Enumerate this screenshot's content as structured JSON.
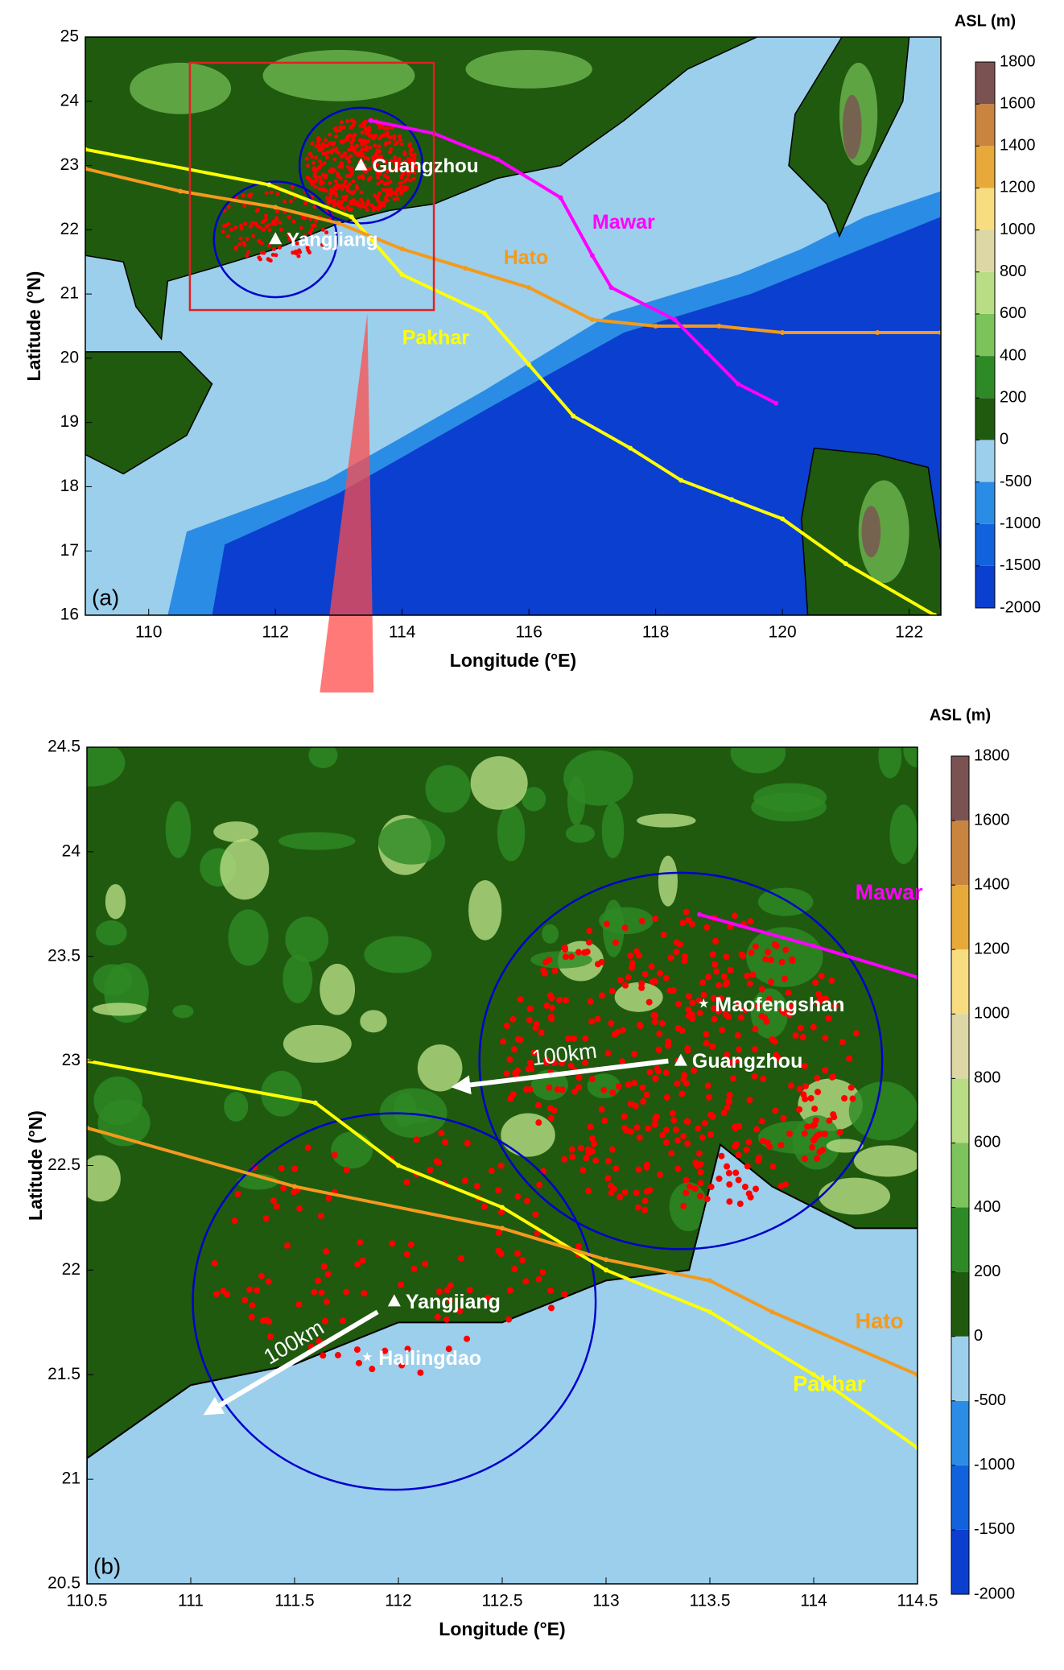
{
  "maps": [
    {
      "label": "(a)",
      "xlabel": "Longitude (°E)",
      "ylabel": "Latitude (°N)",
      "xlim": [
        109,
        122.5
      ],
      "ylim": [
        16,
        25
      ],
      "xticks": [
        110,
        112,
        114,
        116,
        118,
        120,
        122
      ],
      "yticks": [
        16,
        17,
        18,
        19,
        20,
        21,
        22,
        23,
        24,
        25
      ],
      "colorbar": {
        "title": "ASL (m)",
        "levels": [
          -2000,
          -1500,
          -1000,
          -500,
          0,
          200,
          400,
          600,
          800,
          1000,
          1200,
          1400,
          1600,
          1800
        ],
        "colors": [
          "#0a3fcf",
          "#1262dd",
          "#2a8ce5",
          "#9ccfec",
          "#1f5a0e",
          "#2e8a26",
          "#7bc35a",
          "#b8dd84",
          "#dcd7a4",
          "#f8dc80",
          "#e6a93a",
          "#c98440",
          "#7a5252"
        ]
      },
      "tracks": [
        {
          "name": "Pakhar",
          "color": "#ffff00",
          "label_at": [
            114,
            20.3
          ],
          "lon": [
            109,
            111.9,
            113.2,
            114,
            115.3,
            116,
            116.7,
            117.6,
            118.4,
            119.2,
            120,
            121,
            122.4
          ],
          "lat": [
            23.25,
            22.7,
            22.2,
            21.3,
            20.7,
            19.9,
            19.1,
            18.6,
            18.1,
            17.8,
            17.5,
            16.8,
            16
          ]
        },
        {
          "name": "Hato",
          "color": "#f39a1e",
          "label_at": [
            115.6,
            21.55
          ],
          "lon": [
            109,
            110.5,
            112,
            113,
            114,
            115,
            116,
            117,
            118,
            119,
            120,
            121.5,
            122.5
          ],
          "lat": [
            22.95,
            22.6,
            22.35,
            22.1,
            21.7,
            21.4,
            21.1,
            20.6,
            20.5,
            20.5,
            20.4,
            20.4,
            20.4
          ]
        },
        {
          "name": "Mawar",
          "color": "#ff00ff",
          "label_at": [
            117,
            22.1
          ],
          "lon": [
            113.5,
            114.5,
            115.5,
            116.5,
            117,
            117.3,
            118.3,
            118.8,
            119.3,
            119.9
          ],
          "lat": [
            23.7,
            23.5,
            23.1,
            22.5,
            21.6,
            21.1,
            20.6,
            20.1,
            19.6,
            19.3
          ]
        }
      ],
      "places": [
        {
          "name": "Guangzhou",
          "marker": "triangle",
          "lon": 113.35,
          "lat": 23.0
        },
        {
          "name": "Yangjiang",
          "marker": "triangle",
          "lon": 112.0,
          "lat": 21.85
        }
      ]
    },
    {
      "label": "(b)",
      "xlabel": "Longitude (°E)",
      "ylabel": "Latitude (°N)",
      "xlim": [
        110.5,
        114.5
      ],
      "ylim": [
        20.5,
        24.5
      ],
      "xticks": [
        110.5,
        111,
        111.5,
        112,
        112.5,
        113,
        113.5,
        114,
        114.5
      ],
      "yticks": [
        20.5,
        21,
        21.5,
        22,
        22.5,
        23,
        23.5,
        24,
        24.5
      ],
      "colorbar": {
        "title": "ASL (m)",
        "levels": [
          -2000,
          -1500,
          -1000,
          -500,
          0,
          200,
          400,
          600,
          800,
          1000,
          1200,
          1400,
          1600,
          1800
        ],
        "colors": [
          "#0a3fcf",
          "#1262dd",
          "#2a8ce5",
          "#9ccfec",
          "#1f5a0e",
          "#2e8a26",
          "#7bc35a",
          "#b8dd84",
          "#dcd7a4",
          "#f8dc80",
          "#e6a93a",
          "#c98440",
          "#7a5252"
        ]
      },
      "tracks": [
        {
          "name": "Pakhar",
          "color": "#ffff00",
          "label_at": [
            113.9,
            21.45
          ],
          "lon": [
            110.5,
            111.6,
            112,
            112.5,
            113,
            113.5,
            114,
            114.5
          ],
          "lat": [
            23.0,
            22.8,
            22.5,
            22.3,
            22.0,
            21.8,
            21.5,
            21.15
          ]
        },
        {
          "name": "Hato",
          "color": "#f39a1e",
          "label_at": [
            114.2,
            21.75
          ],
          "lon": [
            110.5,
            111.5,
            112.5,
            113,
            113.5,
            113.8,
            114.5
          ],
          "lat": [
            22.68,
            22.4,
            22.2,
            22.05,
            21.95,
            21.8,
            21.5
          ]
        },
        {
          "name": "Mawar",
          "color": "#ff00ff",
          "label_at": [
            114.2,
            23.8
          ],
          "lon": [
            113.45,
            114,
            114.5
          ],
          "lat": [
            23.7,
            23.55,
            23.4
          ]
        }
      ],
      "places": [
        {
          "name": "Guangzhou",
          "marker": "triangle",
          "lon": 113.36,
          "lat": 23.0
        },
        {
          "name": "Yangjiang",
          "marker": "triangle",
          "lon": 111.98,
          "lat": 21.85
        },
        {
          "name": "Maofengshan",
          "marker": "star",
          "lon": 113.47,
          "lat": 23.27
        },
        {
          "name": "Hailingdao",
          "marker": "star",
          "lon": 111.85,
          "lat": 21.58
        }
      ],
      "annotations": [
        "100km",
        "100km"
      ]
    }
  ]
}
